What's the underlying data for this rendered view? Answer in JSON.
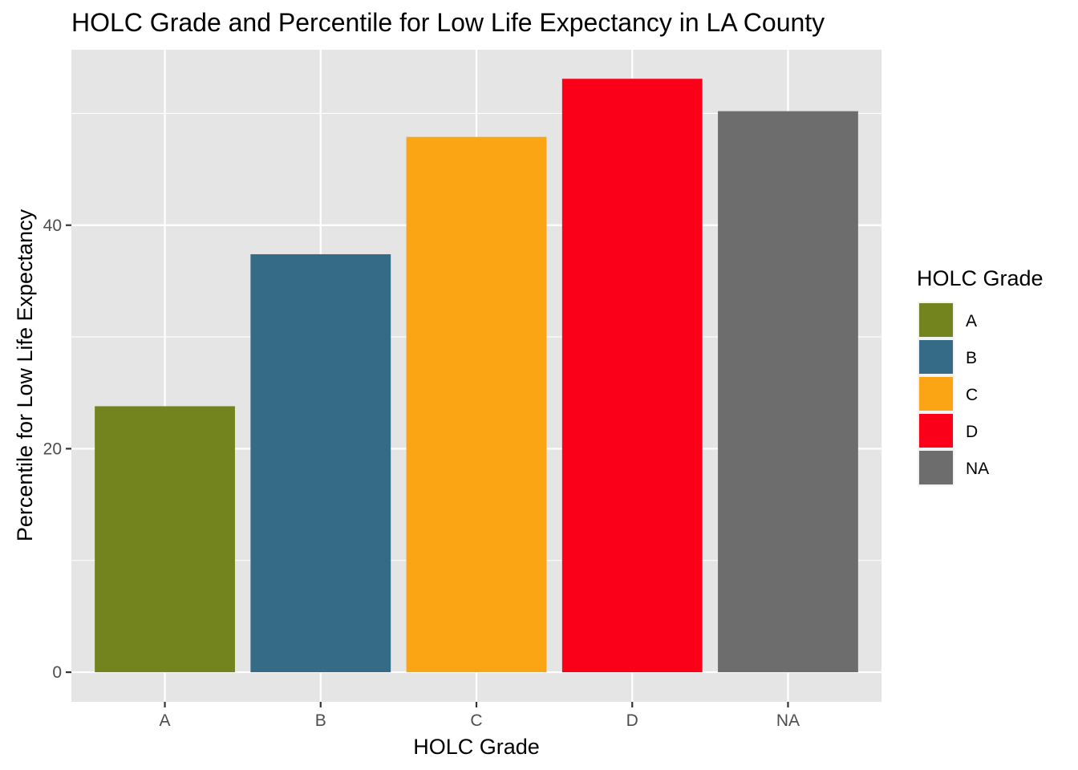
{
  "chart_data": {
    "type": "bar",
    "title": "HOLC Grade and Percentile for Low Life Expectancy in LA County",
    "xlabel": "HOLC Grade",
    "ylabel": "Percentile for Low Life Expectancy",
    "categories": [
      "A",
      "B",
      "C",
      "D",
      "NA"
    ],
    "values": [
      23.8,
      37.4,
      47.9,
      53.1,
      50.2
    ],
    "colors": [
      "#73831e",
      "#366b87",
      "#fba514",
      "#fb0019",
      "#6d6d6d"
    ],
    "ylim": [
      -2.65,
      55.7
    ],
    "y_ticks": [
      0,
      20,
      40
    ],
    "y_tick_labels": [
      "0",
      "20",
      "40"
    ],
    "grid": true,
    "panel_background": "#e5e5e5",
    "grid_color": "#ffffff",
    "legend": {
      "title": "HOLC Grade",
      "placement": "right",
      "items": [
        {
          "label": "A",
          "color": "#73831e"
        },
        {
          "label": "B",
          "color": "#366b87"
        },
        {
          "label": "C",
          "color": "#fba514"
        },
        {
          "label": "D",
          "color": "#fb0019"
        },
        {
          "label": "NA",
          "color": "#6d6d6d"
        }
      ]
    }
  }
}
